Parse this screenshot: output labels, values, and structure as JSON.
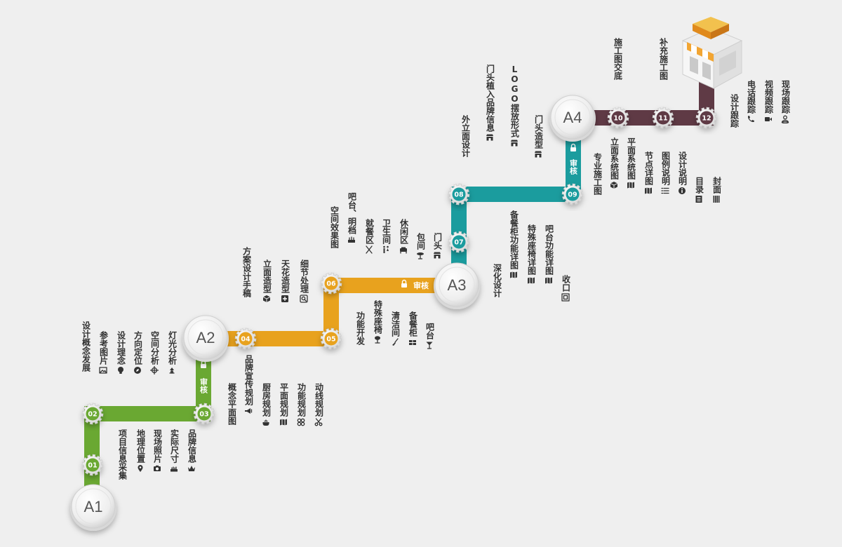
{
  "colors": {
    "phase1": "#6aa832",
    "phase2": "#e8a21e",
    "phase3": "#1b9c9e",
    "phase4": "#5f3a45",
    "text": "#333333",
    "background": "#efefef"
  },
  "hubs": [
    {
      "id": "A1",
      "label": "A1"
    },
    {
      "id": "A2",
      "label": "A2"
    },
    {
      "id": "A3",
      "label": "A3"
    },
    {
      "id": "A4",
      "label": "A4"
    }
  ],
  "steps": [
    {
      "num": "01"
    },
    {
      "num": "02"
    },
    {
      "num": "03"
    },
    {
      "num": "04"
    },
    {
      "num": "05"
    },
    {
      "num": "06"
    },
    {
      "num": "07"
    },
    {
      "num": "08"
    },
    {
      "num": "09"
    },
    {
      "num": "10"
    },
    {
      "num": "11"
    },
    {
      "num": "12"
    }
  ],
  "review_label": "审核",
  "tasks": [
    {
      "text": "项目信息采集",
      "icon": ""
    },
    {
      "text": "地理位置",
      "icon": "location-pin-icon"
    },
    {
      "text": "现场照片",
      "icon": "camera-icon"
    },
    {
      "text": "实际尺寸",
      "icon": "ruler-icon"
    },
    {
      "text": "品牌信息",
      "icon": "crown-icon"
    },
    {
      "text": "设计概念发展",
      "icon": ""
    },
    {
      "text": "参考图片",
      "icon": "image-icon"
    },
    {
      "text": "设计理念",
      "icon": "lightbulb-icon"
    },
    {
      "text": "方向定位",
      "icon": "compass-icon"
    },
    {
      "text": "空间分析",
      "icon": "crosshair-icon"
    },
    {
      "text": "灯光分析",
      "icon": "lamp-icon"
    },
    {
      "text": "概念平面图",
      "icon": ""
    },
    {
      "text": "品牌宣传规划",
      "icon": "megaphone-icon"
    },
    {
      "text": "厨房规划",
      "icon": "pot-icon"
    },
    {
      "text": "平面规划",
      "icon": "map-icon"
    },
    {
      "text": "功能规划",
      "icon": "grid-icon"
    },
    {
      "text": "动线规划",
      "icon": "scissors-icon"
    },
    {
      "text": "方案设计手稿",
      "icon": ""
    },
    {
      "text": "立面造型",
      "icon": "cube-icon"
    },
    {
      "text": "天花造型",
      "icon": "ceiling-icon"
    },
    {
      "text": "细节处理",
      "icon": "magnifier-icon"
    },
    {
      "text": "功能开发",
      "icon": ""
    },
    {
      "text": "特殊座椅",
      "icon": "chair-icon"
    },
    {
      "text": "清洁间",
      "icon": "broom-icon"
    },
    {
      "text": "备餐柜",
      "icon": "cabinet-icon"
    },
    {
      "text": "吧台",
      "icon": "cocktail-icon"
    },
    {
      "text": "空间效果图",
      "icon": ""
    },
    {
      "text": "吧台、明档",
      "icon": "counter-icon"
    },
    {
      "text": "就餐区",
      "icon": "cutlery-icon"
    },
    {
      "text": "卫生间",
      "icon": "restroom-icon"
    },
    {
      "text": "休闲区",
      "icon": "sofa-icon"
    },
    {
      "text": "包间",
      "icon": "table-icon"
    },
    {
      "text": "门头",
      "icon": "storefront-icon"
    },
    {
      "text": "深化设计",
      "icon": ""
    },
    {
      "text": "备餐柜功能详图",
      "icon": "map-icon"
    },
    {
      "text": "特殊座椅详图",
      "icon": "map-icon"
    },
    {
      "text": "吧台功能详图",
      "icon": "map-icon"
    },
    {
      "text": "收口",
      "icon": "frame-icon"
    },
    {
      "text": "外立面设计",
      "icon": ""
    },
    {
      "text": "门头植入品牌信息",
      "icon": "storefront-icon"
    },
    {
      "text": "LOGO摆放形式",
      "icon": "storefront-icon"
    },
    {
      "text": "门头造型",
      "icon": "storefront-icon"
    },
    {
      "text": "专业施工图",
      "icon": ""
    },
    {
      "text": "立面系统图",
      "icon": "cube-icon"
    },
    {
      "text": "平面系统图",
      "icon": "map-icon"
    },
    {
      "text": "节点详图",
      "icon": "map-icon"
    },
    {
      "text": "图例说明",
      "icon": "list-icon"
    },
    {
      "text": "设计说明",
      "icon": "info-icon"
    },
    {
      "text": "目录",
      "icon": "document-icon"
    },
    {
      "text": "封面",
      "icon": "book-icon"
    },
    {
      "text": "施工图交底",
      "icon": ""
    },
    {
      "text": "补充施工图",
      "icon": ""
    },
    {
      "text": "设计跟踪",
      "icon": ""
    },
    {
      "text": "电话跟踪",
      "icon": "phone-icon"
    },
    {
      "text": "视频跟踪",
      "icon": "video-icon"
    },
    {
      "text": "现场跟踪",
      "icon": "person-pin-icon"
    }
  ]
}
